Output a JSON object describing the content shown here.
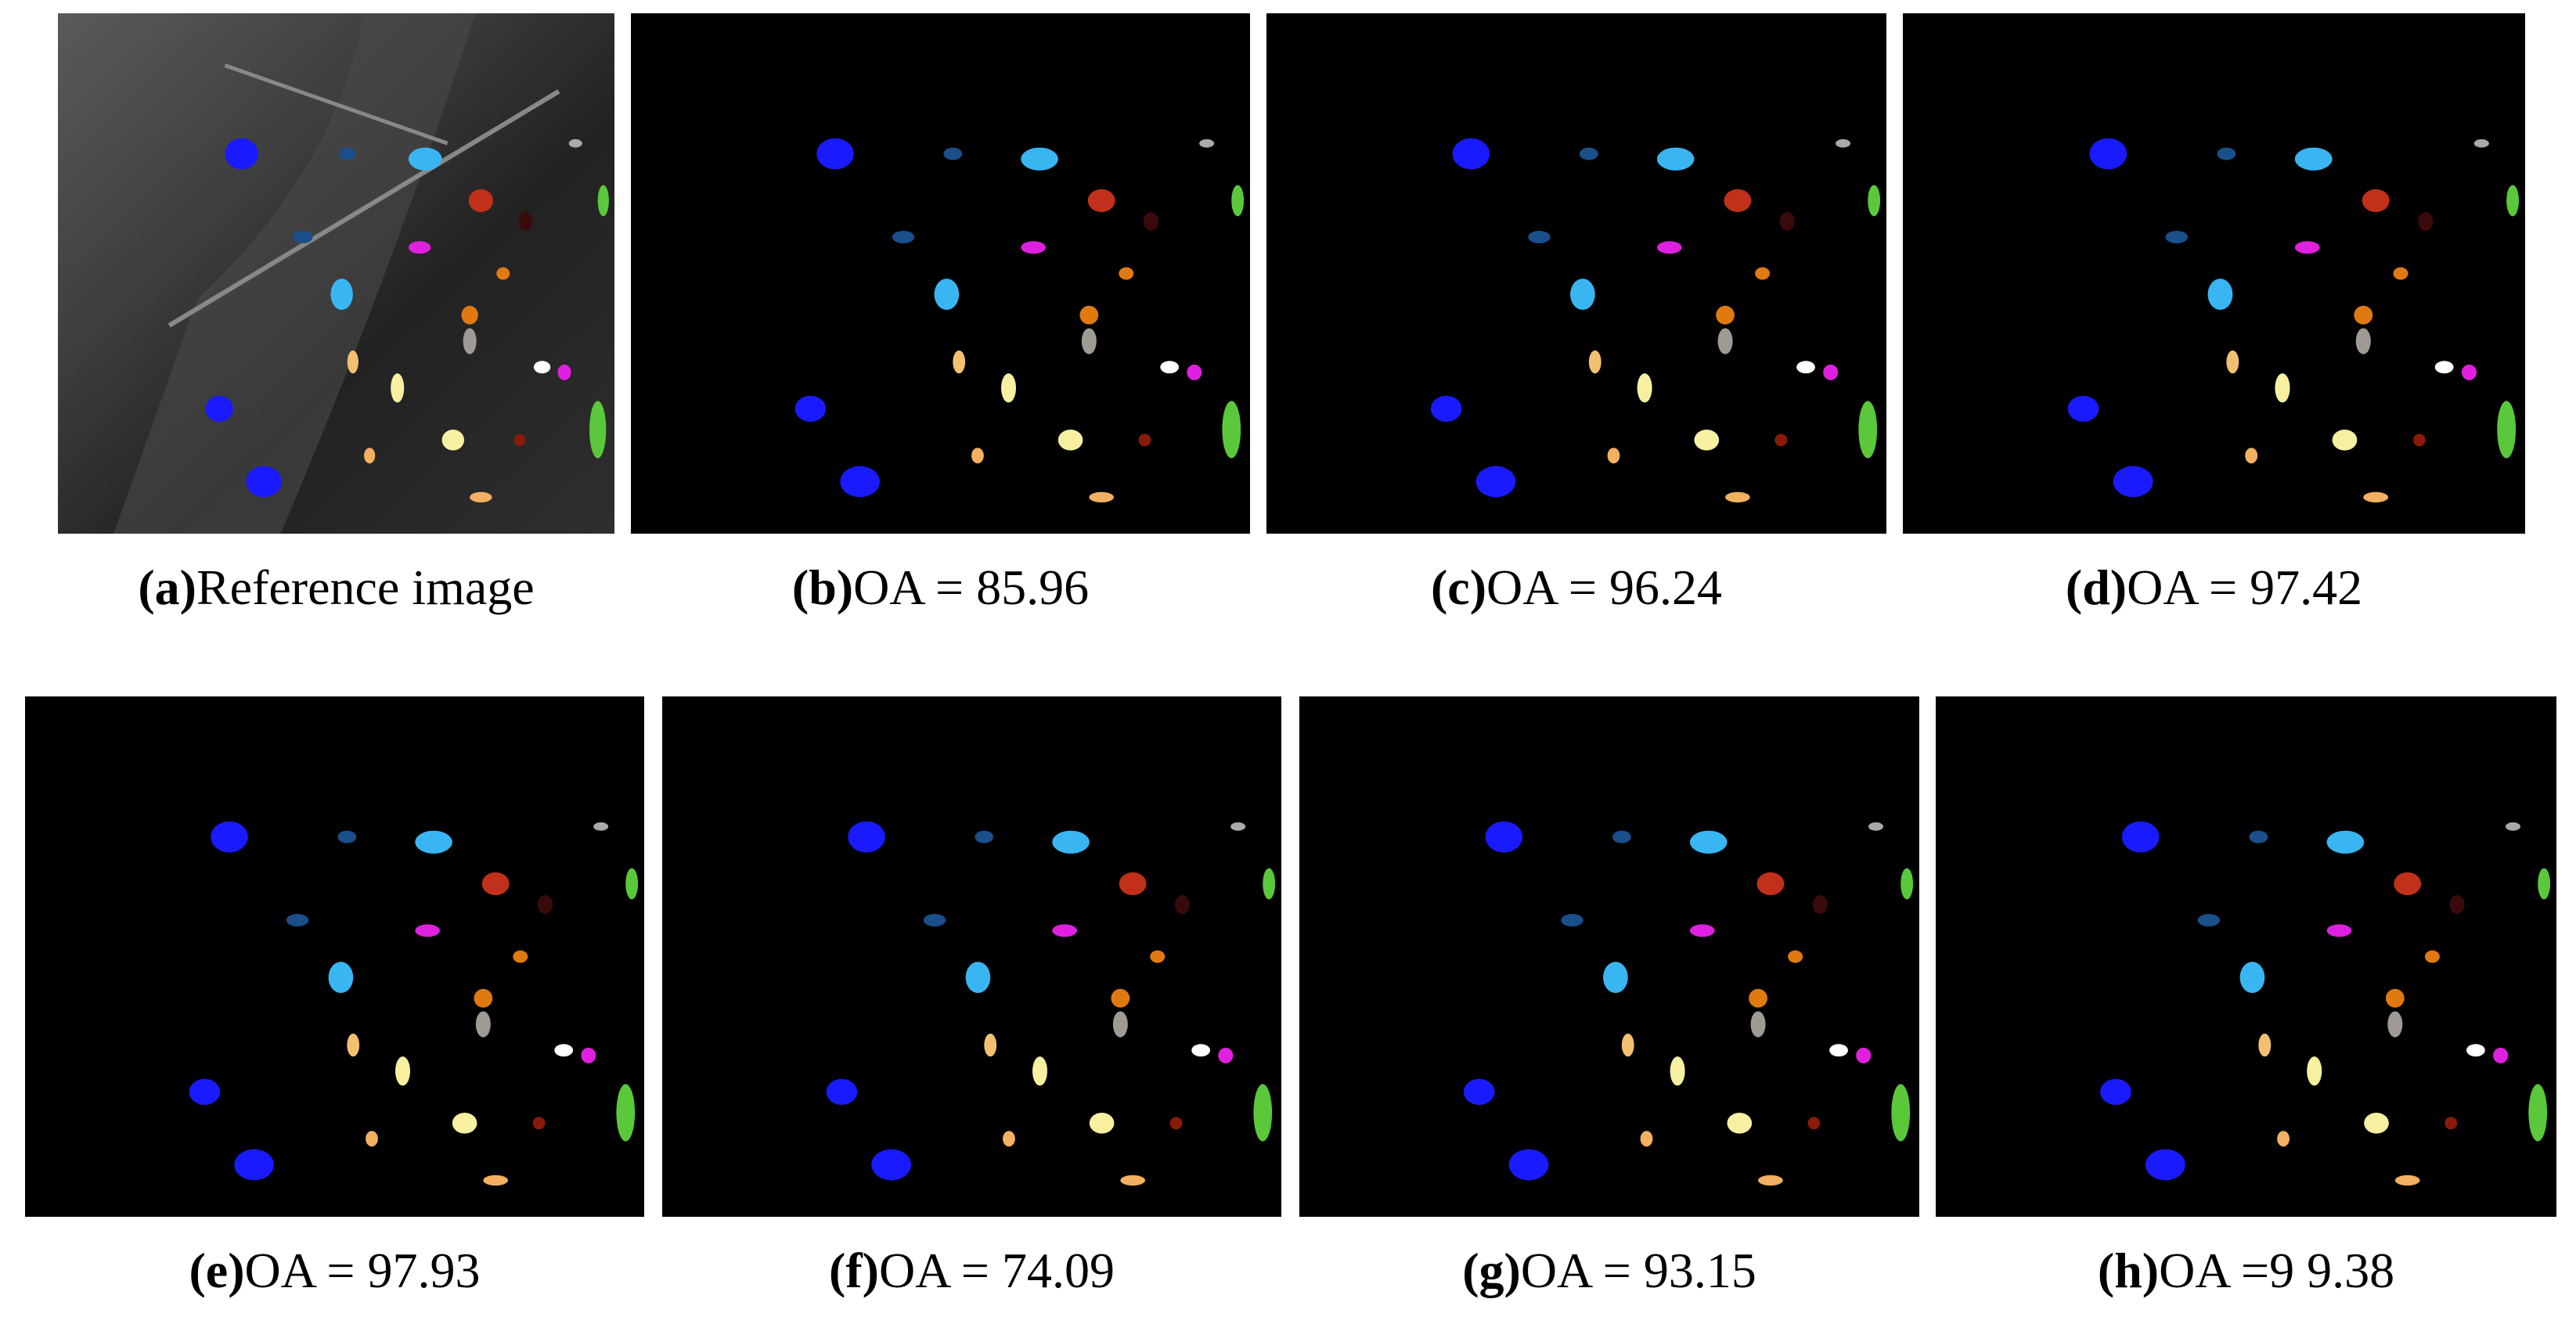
{
  "panels": [
    {
      "tag": "(a)",
      "caption": "Reference image"
    },
    {
      "tag": "(b)",
      "caption": "OA = 85.96"
    },
    {
      "tag": "(c)",
      "caption": "OA = 96.24"
    },
    {
      "tag": "(d)",
      "caption": "OA = 97.42"
    },
    {
      "tag": "(e)",
      "caption": "OA = 97.93"
    },
    {
      "tag": "(f)",
      "caption": "OA = 74.09"
    },
    {
      "tag": "(g)",
      "caption": "OA = 93.15"
    },
    {
      "tag": "(h)",
      "caption": "OA =9 9.38"
    }
  ]
}
